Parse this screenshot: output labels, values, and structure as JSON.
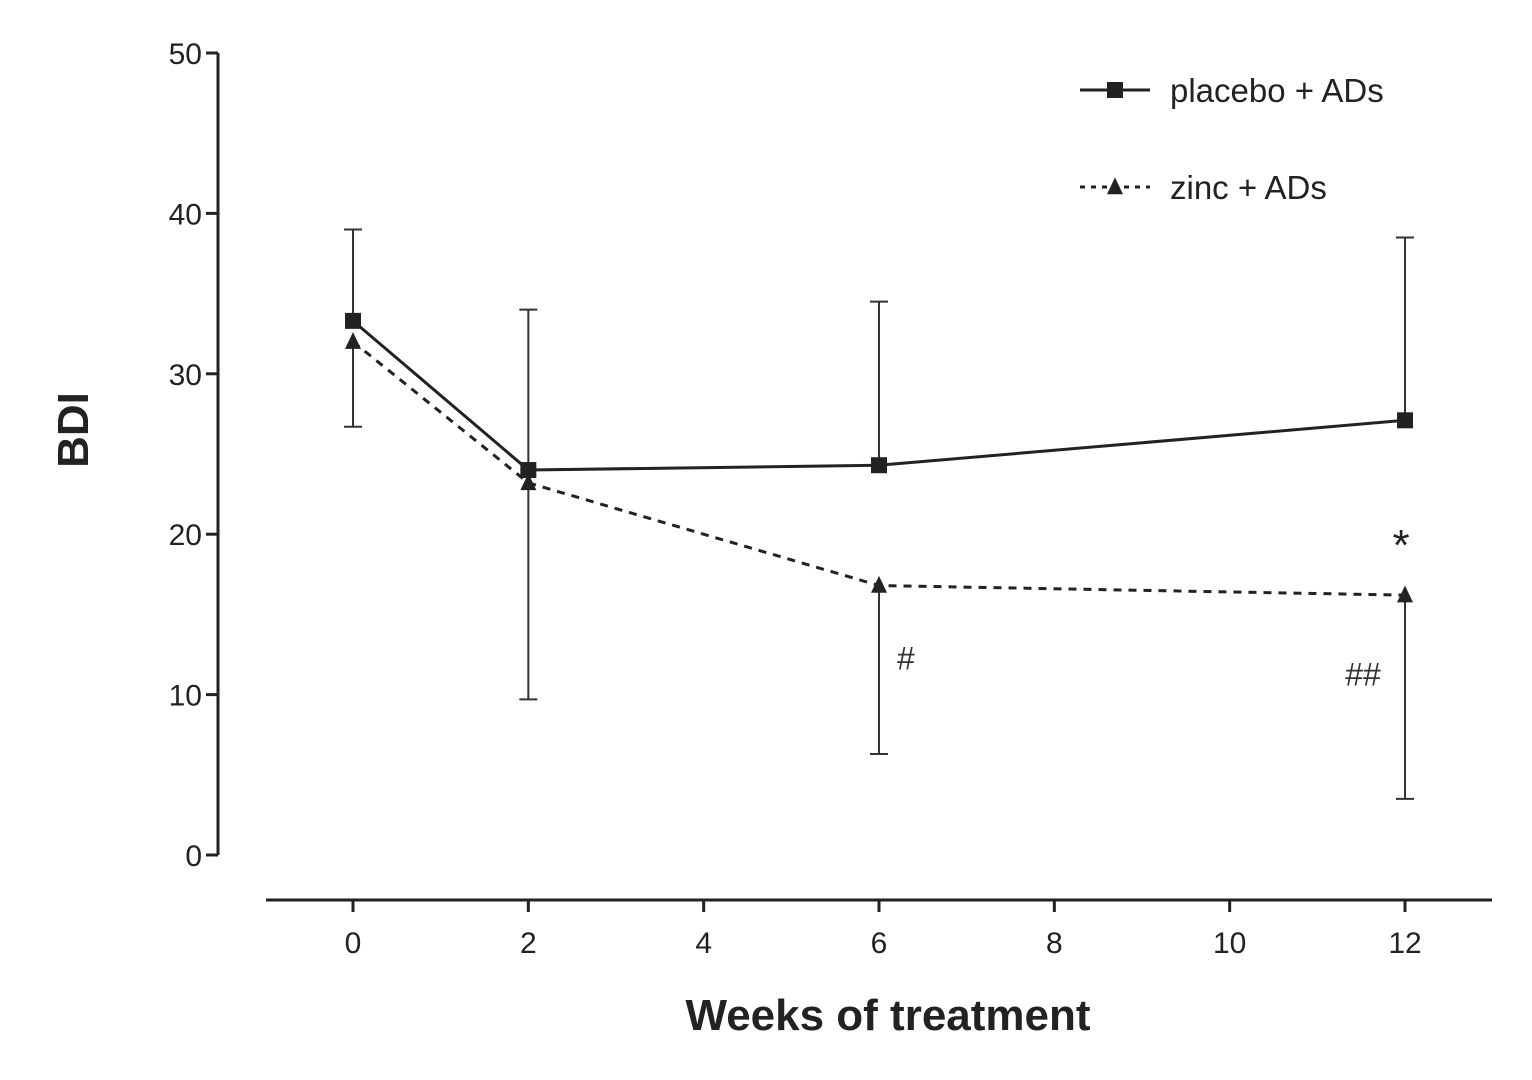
{
  "chart_data": {
    "type": "line",
    "title": "",
    "xlabel": "Weeks of treatment",
    "ylabel": "BDI",
    "x": [
      0,
      2,
      6,
      12
    ],
    "xlim": [
      -1,
      13
    ],
    "ylim": [
      0,
      50
    ],
    "xticks": [
      0,
      2,
      4,
      6,
      8,
      10,
      12
    ],
    "yticks": [
      0,
      10,
      20,
      30,
      40,
      50
    ],
    "grid": false,
    "legend_position": "top-right",
    "series": [
      {
        "name": "placebo + ADs",
        "marker": "square",
        "line_style": "solid",
        "color": "#222222",
        "values": [
          33.3,
          24.0,
          24.3,
          27.1
        ],
        "error_upper": [
          39.0,
          34.0,
          34.5,
          38.5
        ],
        "error_lower": [
          null,
          null,
          null,
          null
        ]
      },
      {
        "name": "zinc + ADs",
        "marker": "triangle",
        "line_style": "dashed",
        "color": "#222222",
        "values": [
          32.0,
          23.2,
          16.8,
          16.2
        ],
        "error_upper": [
          null,
          null,
          null,
          null
        ],
        "error_lower": [
          26.7,
          9.7,
          6.3,
          3.5
        ]
      }
    ],
    "annotations": [
      {
        "text": "#",
        "x": 6,
        "y": 12.3
      },
      {
        "text": "##",
        "x": 12,
        "y": 11.3
      },
      {
        "text": "*",
        "x": 12,
        "y": 19.5
      }
    ]
  }
}
